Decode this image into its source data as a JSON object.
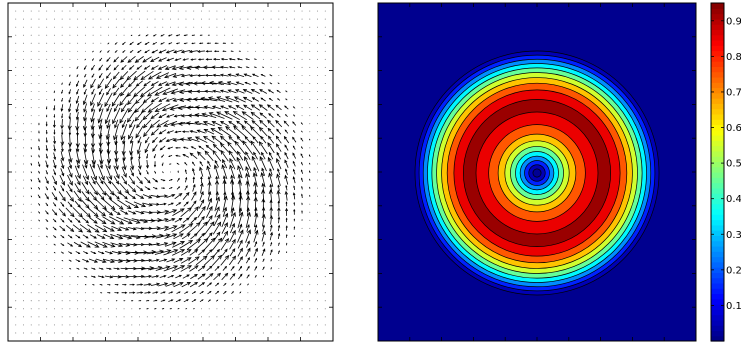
{
  "chart_data": [
    {
      "type": "quiver",
      "field": "counter-clockwise swirling vortex, magnitude zero at the centre and beyond radius 0.95 of the half-width",
      "grid": "regular grid of arrows",
      "xlim": [
        -1,
        1
      ],
      "ylim": [
        -1,
        1
      ],
      "arrow_color": "#000000",
      "axes_box": true,
      "tick_labels": false
    },
    {
      "type": "heatmap",
      "subtype": "filled contour",
      "field": "concentric rings: value peaks at radius 0.5 of the half-width, zero at centre and beyond the disc edge",
      "xlim": [
        -1,
        1
      ],
      "ylim": [
        -1,
        1
      ],
      "levels": [
        0,
        0.1,
        0.2,
        0.3,
        0.4,
        0.5,
        0.6,
        0.7,
        0.8,
        0.9
      ],
      "colormap": "jet",
      "colorbar": {
        "position": "right",
        "range": [
          0,
          0.95
        ],
        "ticks": [
          0.1,
          0.2,
          0.3,
          0.4,
          0.5,
          0.6,
          0.7,
          0.8,
          0.9
        ],
        "tick_labels": [
          "0.1",
          "0.2",
          "0.3",
          "0.4",
          "0.5",
          "0.6",
          "0.7",
          "0.8",
          "0.9"
        ]
      },
      "tick_labels": false
    }
  ]
}
